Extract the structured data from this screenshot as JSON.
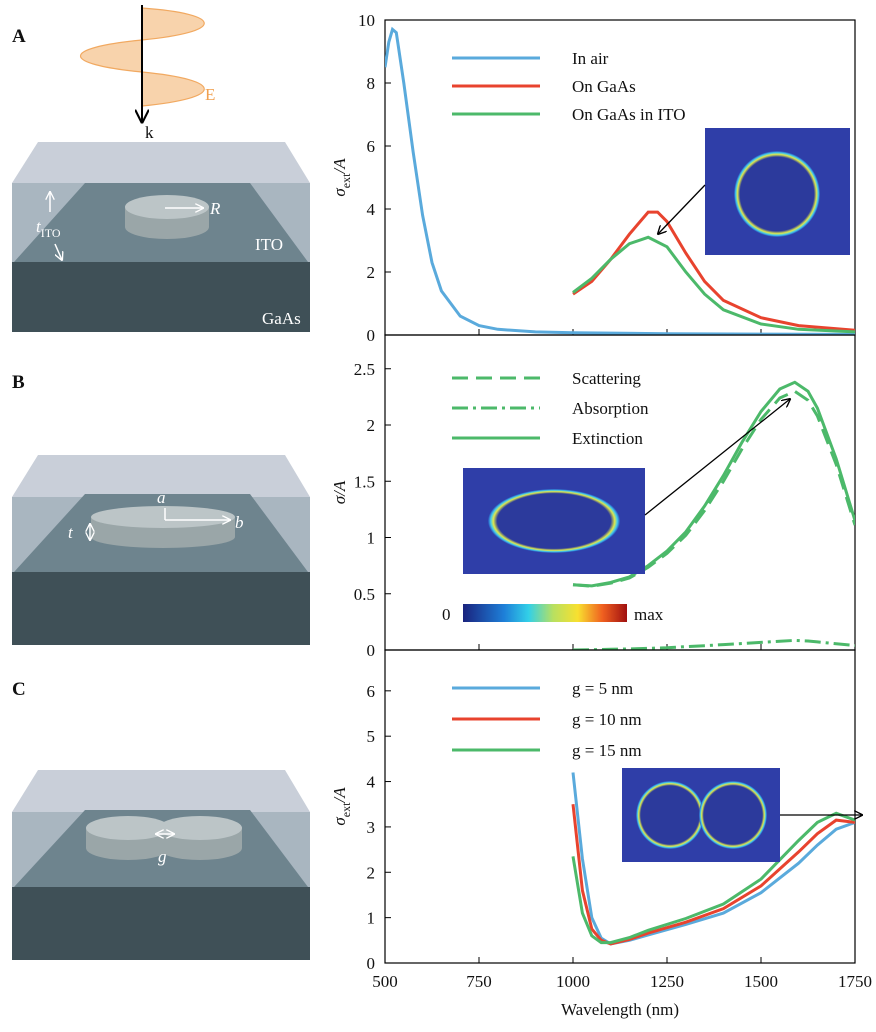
{
  "panels": [
    {
      "label": "A",
      "wave_label": "E",
      "direction_label": "k",
      "radius_label": "R",
      "thickness_label": {
        "symbol": "t",
        "subscript": "ITO"
      },
      "layer_top": "ITO",
      "layer_bottom": "GaAs"
    },
    {
      "label": "B",
      "axis_a_label": "a",
      "axis_b_label": "b",
      "thickness_label": "t",
      "colorbar_min": "0",
      "colorbar_max": "max"
    },
    {
      "label": "C",
      "gap_label": "g"
    }
  ],
  "chart_data": [
    {
      "type": "line",
      "ylabel": {
        "symbol": "σ",
        "subscript": "ext",
        "suffix": "/A"
      },
      "xlim": [
        500,
        1750
      ],
      "xticks": [
        500,
        750,
        1000,
        1250,
        1500,
        1750
      ],
      "ylim": [
        0,
        10
      ],
      "yticks": [
        0,
        2,
        4,
        6,
        8,
        10
      ],
      "series": [
        {
          "name": "In air",
          "color": "#5aaadc",
          "linestyle": "solid",
          "x": [
            500,
            510,
            520,
            530,
            550,
            575,
            600,
            625,
            650,
            700,
            750,
            800,
            900,
            1000,
            1250,
            1500,
            1750
          ],
          "values": [
            8.5,
            9.3,
            9.7,
            9.6,
            8.0,
            5.8,
            3.8,
            2.3,
            1.4,
            0.6,
            0.3,
            0.18,
            0.1,
            0.07,
            0.04,
            0.03,
            0.02
          ]
        },
        {
          "name": "On GaAs",
          "color": "#e8432e",
          "linestyle": "solid",
          "x": [
            1000,
            1050,
            1100,
            1150,
            1200,
            1225,
            1250,
            1300,
            1350,
            1400,
            1500,
            1600,
            1750
          ],
          "values": [
            1.3,
            1.7,
            2.4,
            3.2,
            3.9,
            3.9,
            3.6,
            2.6,
            1.7,
            1.1,
            0.55,
            0.3,
            0.15
          ]
        },
        {
          "name": "On GaAs in ITO",
          "color": "#4cb96a",
          "linestyle": "solid",
          "x": [
            1000,
            1050,
            1100,
            1150,
            1200,
            1250,
            1300,
            1350,
            1400,
            1500,
            1600,
            1750
          ],
          "values": [
            1.35,
            1.8,
            2.4,
            2.9,
            3.1,
            2.8,
            2.0,
            1.3,
            0.8,
            0.35,
            0.18,
            0.1
          ]
        }
      ]
    },
    {
      "type": "line",
      "ylabel": {
        "symbol": "σ",
        "suffix": "/A"
      },
      "xlim": [
        500,
        1750
      ],
      "xticks": [
        500,
        750,
        1000,
        1250,
        1500,
        1750
      ],
      "ylim": [
        0,
        2.8
      ],
      "yticks": [
        0,
        0.5,
        1,
        1.5,
        2,
        2.5
      ],
      "series": [
        {
          "name": "Scattering",
          "color": "#4cb96a",
          "linestyle": "dashed",
          "x": [
            1000,
            1050,
            1100,
            1150,
            1200,
            1250,
            1300,
            1350,
            1400,
            1450,
            1500,
            1550,
            1590,
            1625,
            1650,
            1700,
            1750
          ],
          "values": [
            0.58,
            0.567,
            0.594,
            0.64,
            0.735,
            0.86,
            1.02,
            1.24,
            1.5,
            1.79,
            2.05,
            2.24,
            2.3,
            2.22,
            2.08,
            1.65,
            1.11
          ]
        },
        {
          "name": "Absorption",
          "color": "#4cb96a",
          "linestyle": "dashdot",
          "x": [
            1000,
            1050,
            1100,
            1150,
            1200,
            1250,
            1300,
            1350,
            1400,
            1450,
            1500,
            1550,
            1590,
            1625,
            1650,
            1700,
            1750
          ],
          "values": [
            0.0,
            0.003,
            0.006,
            0.01,
            0.015,
            0.02,
            0.03,
            0.038,
            0.048,
            0.058,
            0.068,
            0.078,
            0.085,
            0.08,
            0.072,
            0.055,
            0.04
          ]
        },
        {
          "name": "Extinction",
          "color": "#4cb96a",
          "linestyle": "solid",
          "x": [
            1000,
            1050,
            1100,
            1150,
            1200,
            1250,
            1300,
            1350,
            1400,
            1450,
            1500,
            1550,
            1590,
            1625,
            1650,
            1700,
            1750
          ],
          "values": [
            0.58,
            0.57,
            0.6,
            0.65,
            0.75,
            0.88,
            1.05,
            1.28,
            1.55,
            1.85,
            2.12,
            2.32,
            2.38,
            2.3,
            2.15,
            1.7,
            1.15
          ]
        }
      ]
    },
    {
      "type": "line",
      "ylabel": {
        "symbol": "σ",
        "subscript": "ext",
        "suffix": "/A"
      },
      "xlabel": "Wavelength (nm)",
      "xlim": [
        500,
        1750
      ],
      "xticks": [
        500,
        750,
        1000,
        1250,
        1500,
        1750
      ],
      "ylim": [
        0,
        6.9
      ],
      "yticks": [
        0,
        1,
        2,
        3,
        4,
        5,
        6
      ],
      "series": [
        {
          "name": "g = 5 nm",
          "color": "#5aaadc",
          "linestyle": "solid",
          "x": [
            1000,
            1025,
            1050,
            1075,
            1100,
            1150,
            1200,
            1300,
            1400,
            1500,
            1600,
            1650,
            1700,
            1750
          ],
          "values": [
            4.2,
            2.3,
            1.0,
            0.55,
            0.42,
            0.5,
            0.62,
            0.85,
            1.1,
            1.55,
            2.2,
            2.6,
            2.95,
            3.1
          ]
        },
        {
          "name": "g = 10 nm",
          "color": "#e8432e",
          "linestyle": "solid",
          "x": [
            1000,
            1025,
            1050,
            1075,
            1100,
            1150,
            1200,
            1300,
            1400,
            1500,
            1600,
            1650,
            1700,
            1750
          ],
          "values": [
            3.5,
            1.6,
            0.75,
            0.5,
            0.42,
            0.52,
            0.66,
            0.9,
            1.2,
            1.7,
            2.45,
            2.85,
            3.15,
            3.1
          ]
        },
        {
          "name": "g = 15 nm",
          "color": "#4cb96a",
          "linestyle": "solid",
          "x": [
            1000,
            1025,
            1050,
            1075,
            1100,
            1150,
            1200,
            1300,
            1400,
            1500,
            1600,
            1650,
            1700,
            1750
          ],
          "values": [
            2.35,
            1.1,
            0.6,
            0.45,
            0.45,
            0.56,
            0.72,
            0.98,
            1.3,
            1.85,
            2.7,
            3.1,
            3.3,
            3.15
          ]
        }
      ]
    }
  ]
}
